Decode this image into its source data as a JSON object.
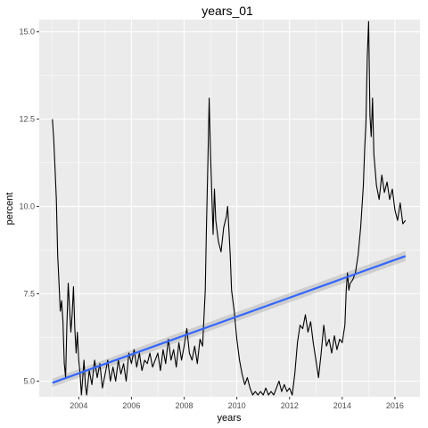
{
  "chart_data": {
    "type": "line",
    "title": "years_01",
    "xlabel": "years",
    "ylabel": "percent",
    "xlim": [
      2002.5,
      2016.95
    ],
    "ylim": [
      4.55,
      15.35
    ],
    "x_ticks": [
      2004,
      2006,
      2008,
      2010,
      2012,
      2014,
      2016
    ],
    "x_tick_labels": [
      "2004",
      "2006",
      "2008",
      "2010",
      "2012",
      "2014",
      "2016"
    ],
    "y_ticks": [
      5.0,
      7.5,
      10.0,
      12.5,
      15.0
    ],
    "y_tick_labels": [
      "5.0",
      "7.5",
      "10.0",
      "12.5",
      "15.0"
    ],
    "grid": true,
    "series": [
      {
        "name": "percent",
        "color": "#000000",
        "points": [
          [
            2003.0,
            12.5
          ],
          [
            2003.05,
            11.9
          ],
          [
            2003.1,
            11.1
          ],
          [
            2003.15,
            10.2
          ],
          [
            2003.2,
            8.6
          ],
          [
            2003.25,
            7.8
          ],
          [
            2003.3,
            7.0
          ],
          [
            2003.35,
            7.3
          ],
          [
            2003.4,
            6.7
          ],
          [
            2003.45,
            5.5
          ],
          [
            2003.5,
            5.1
          ],
          [
            2003.55,
            6.6
          ],
          [
            2003.6,
            7.8
          ],
          [
            2003.65,
            7.1
          ],
          [
            2003.7,
            6.4
          ],
          [
            2003.75,
            6.9
          ],
          [
            2003.8,
            7.7
          ],
          [
            2003.85,
            6.5
          ],
          [
            2003.9,
            5.8
          ],
          [
            2003.95,
            6.4
          ],
          [
            2004.0,
            5.6
          ],
          [
            2004.05,
            5.2
          ],
          [
            2004.1,
            4.6
          ],
          [
            2004.15,
            5.1
          ],
          [
            2004.2,
            5.6
          ],
          [
            2004.25,
            4.9
          ],
          [
            2004.3,
            4.6
          ],
          [
            2004.4,
            5.3
          ],
          [
            2004.5,
            4.9
          ],
          [
            2004.6,
            5.6
          ],
          [
            2004.7,
            5.1
          ],
          [
            2004.8,
            5.5
          ],
          [
            2004.9,
            4.8
          ],
          [
            2005.0,
            5.2
          ],
          [
            2005.1,
            5.6
          ],
          [
            2005.2,
            5.0
          ],
          [
            2005.3,
            5.4
          ],
          [
            2005.4,
            5.0
          ],
          [
            2005.5,
            5.6
          ],
          [
            2005.6,
            5.2
          ],
          [
            2005.7,
            5.5
          ],
          [
            2005.8,
            5.0
          ],
          [
            2005.9,
            5.8
          ],
          [
            2006.0,
            5.5
          ],
          [
            2006.1,
            5.9
          ],
          [
            2006.2,
            5.4
          ],
          [
            2006.3,
            5.8
          ],
          [
            2006.4,
            5.3
          ],
          [
            2006.5,
            5.6
          ],
          [
            2006.6,
            5.5
          ],
          [
            2006.7,
            5.8
          ],
          [
            2006.8,
            5.4
          ],
          [
            2006.9,
            5.6
          ],
          [
            2007.0,
            5.8
          ],
          [
            2007.1,
            5.3
          ],
          [
            2007.2,
            5.9
          ],
          [
            2007.3,
            5.5
          ],
          [
            2007.4,
            6.2
          ],
          [
            2007.5,
            5.6
          ],
          [
            2007.6,
            5.9
          ],
          [
            2007.7,
            5.4
          ],
          [
            2007.8,
            6.1
          ],
          [
            2007.9,
            5.6
          ],
          [
            2008.0,
            6.0
          ],
          [
            2008.1,
            6.5
          ],
          [
            2008.2,
            5.8
          ],
          [
            2008.3,
            5.6
          ],
          [
            2008.4,
            6.0
          ],
          [
            2008.5,
            5.5
          ],
          [
            2008.6,
            6.2
          ],
          [
            2008.7,
            6.0
          ],
          [
            2008.8,
            7.6
          ],
          [
            2008.85,
            9.5
          ],
          [
            2008.9,
            11.2
          ],
          [
            2008.95,
            13.1
          ],
          [
            2009.0,
            11.5
          ],
          [
            2009.05,
            10.3
          ],
          [
            2009.1,
            9.2
          ],
          [
            2009.15,
            10.5
          ],
          [
            2009.2,
            9.6
          ],
          [
            2009.3,
            9.0
          ],
          [
            2009.4,
            8.7
          ],
          [
            2009.5,
            9.4
          ],
          [
            2009.6,
            9.7
          ],
          [
            2009.65,
            10.0
          ],
          [
            2009.7,
            9.3
          ],
          [
            2009.75,
            8.6
          ],
          [
            2009.8,
            7.6
          ],
          [
            2009.9,
            7.0
          ],
          [
            2010.0,
            6.2
          ],
          [
            2010.1,
            5.6
          ],
          [
            2010.2,
            5.2
          ],
          [
            2010.3,
            4.9
          ],
          [
            2010.4,
            5.1
          ],
          [
            2010.5,
            4.8
          ],
          [
            2010.6,
            4.6
          ],
          [
            2010.7,
            4.7
          ],
          [
            2010.8,
            4.6
          ],
          [
            2010.9,
            4.7
          ],
          [
            2011.0,
            4.6
          ],
          [
            2011.1,
            4.8
          ],
          [
            2011.2,
            4.6
          ],
          [
            2011.3,
            4.7
          ],
          [
            2011.4,
            4.6
          ],
          [
            2011.5,
            4.8
          ],
          [
            2011.6,
            5.0
          ],
          [
            2011.7,
            4.7
          ],
          [
            2011.8,
            4.9
          ],
          [
            2011.9,
            4.7
          ],
          [
            2012.0,
            4.8
          ],
          [
            2012.1,
            4.6
          ],
          [
            2012.2,
            5.2
          ],
          [
            2012.3,
            6.1
          ],
          [
            2012.4,
            6.6
          ],
          [
            2012.5,
            6.5
          ],
          [
            2012.6,
            6.9
          ],
          [
            2012.7,
            6.4
          ],
          [
            2012.8,
            6.7
          ],
          [
            2012.9,
            6.1
          ],
          [
            2013.0,
            5.6
          ],
          [
            2013.1,
            5.1
          ],
          [
            2013.2,
            5.8
          ],
          [
            2013.3,
            6.6
          ],
          [
            2013.4,
            6.0
          ],
          [
            2013.5,
            6.2
          ],
          [
            2013.6,
            5.8
          ],
          [
            2013.7,
            6.3
          ],
          [
            2013.8,
            5.9
          ],
          [
            2013.9,
            6.2
          ],
          [
            2014.0,
            6.1
          ],
          [
            2014.1,
            6.6
          ],
          [
            2014.15,
            7.6
          ],
          [
            2014.2,
            8.1
          ],
          [
            2014.25,
            7.6
          ],
          [
            2014.3,
            7.8
          ],
          [
            2014.4,
            7.9
          ],
          [
            2014.5,
            8.1
          ],
          [
            2014.6,
            8.6
          ],
          [
            2014.7,
            9.4
          ],
          [
            2014.75,
            10.0
          ],
          [
            2014.8,
            10.6
          ],
          [
            2014.85,
            11.6
          ],
          [
            2014.9,
            12.4
          ],
          [
            2014.95,
            14.3
          ],
          [
            2015.0,
            15.3
          ],
          [
            2015.05,
            12.6
          ],
          [
            2015.1,
            12.0
          ],
          [
            2015.15,
            13.1
          ],
          [
            2015.2,
            11.5
          ],
          [
            2015.3,
            10.6
          ],
          [
            2015.4,
            10.2
          ],
          [
            2015.5,
            10.9
          ],
          [
            2015.6,
            10.4
          ],
          [
            2015.7,
            10.7
          ],
          [
            2015.8,
            10.2
          ],
          [
            2015.9,
            10.5
          ],
          [
            2016.0,
            9.9
          ],
          [
            2016.1,
            9.6
          ],
          [
            2016.2,
            10.1
          ],
          [
            2016.3,
            9.5
          ],
          [
            2016.4,
            9.6
          ]
        ]
      }
    ],
    "trend": {
      "name": "linear fit",
      "color": "#3366FF",
      "band_color": "#999999",
      "points": [
        [
          2003.0,
          4.95
        ],
        [
          2016.4,
          8.58
        ]
      ],
      "band_halfwidth": [
        0.12,
        0.14
      ]
    }
  }
}
